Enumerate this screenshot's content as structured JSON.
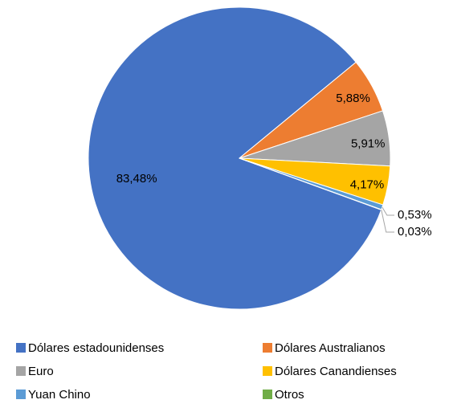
{
  "chart_data": {
    "type": "pie",
    "categories": [
      "Dólares estadounidenses",
      "Dólares Australianos",
      "Euro",
      "Dólares Canandienses",
      "Yuan Chino",
      "Otros"
    ],
    "values": [
      83.48,
      5.88,
      5.91,
      4.17,
      0.53,
      0.03
    ],
    "value_labels": [
      "83,48%",
      "5,88%",
      "5,91%",
      "4,17%",
      "0,53%",
      "0,03%"
    ],
    "colors": [
      "#4472c4",
      "#ed7d31",
      "#a5a5a5",
      "#ffc000",
      "#5b9bd5",
      "#70ad47"
    ],
    "legend": "bottom"
  }
}
